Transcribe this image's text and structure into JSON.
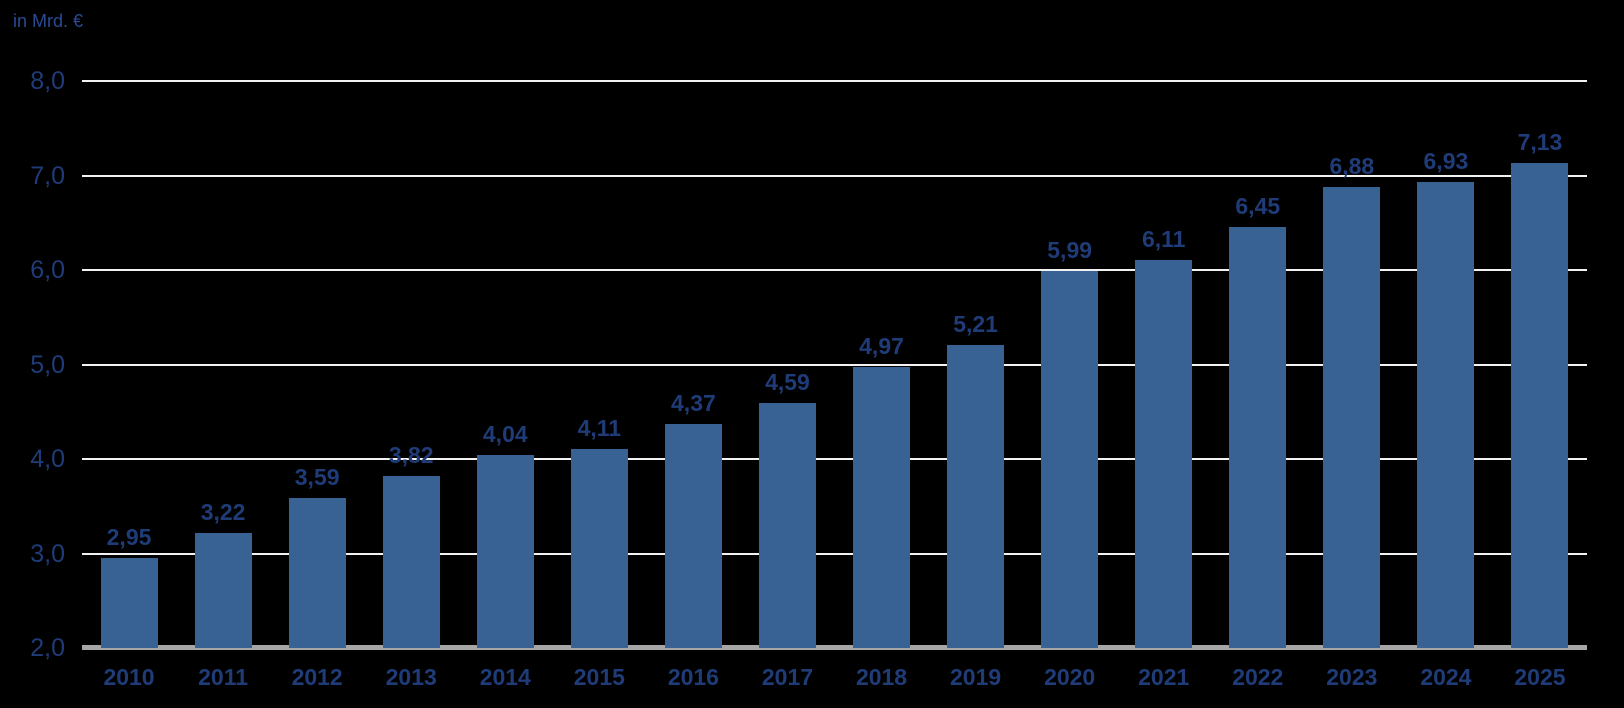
{
  "colors": {
    "background": "#000000",
    "bar": "#386293",
    "value_label": "#1F3C78",
    "x_tick_label": "#1F3C78",
    "y_tick_label": "#1F3C78",
    "unit_label": "#2B4994",
    "gridline": "#F2F2F2",
    "baseline": "#A6A6A6"
  },
  "chart_data": {
    "type": "bar",
    "title": "",
    "xlabel": "",
    "ylabel": "in Mrd. €",
    "categories": [
      "2010",
      "2011",
      "2012",
      "2013",
      "2014",
      "2015",
      "2016",
      "2017",
      "2018",
      "2019",
      "2020",
      "2021",
      "2022",
      "2023",
      "2024",
      "2025"
    ],
    "values": [
      2.95,
      3.22,
      3.59,
      3.82,
      4.04,
      4.11,
      4.37,
      4.59,
      4.97,
      5.21,
      5.99,
      6.11,
      6.45,
      6.88,
      6.93,
      7.13
    ],
    "value_labels": [
      "2,95",
      "3,22",
      "3,59",
      "3,82",
      "4,04",
      "4,11",
      "4,37",
      "4,59",
      "4,97",
      "5,21",
      "5,99",
      "6,11",
      "6,45",
      "6,88",
      "6,93",
      "7,13"
    ],
    "ylim": [
      2.0,
      8.0
    ],
    "yticks": [
      {
        "v": 2.0,
        "label": "2,0"
      },
      {
        "v": 3.0,
        "label": "3,0"
      },
      {
        "v": 4.0,
        "label": "4,0"
      },
      {
        "v": 5.0,
        "label": "5,0"
      },
      {
        "v": 6.0,
        "label": "6,0"
      },
      {
        "v": 7.0,
        "label": "7,0"
      },
      {
        "v": 8.0,
        "label": "8,0"
      }
    ],
    "grid": true,
    "legend": false,
    "decimal_separator": ","
  }
}
